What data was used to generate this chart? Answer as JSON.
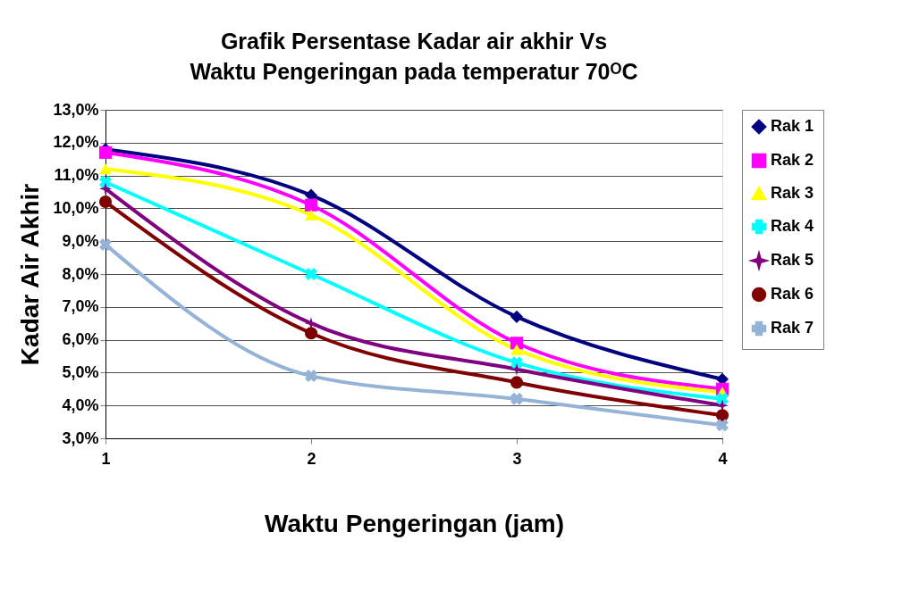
{
  "chart_data": {
    "type": "line",
    "title": "Grafik Persentase Kadar air akhir Vs\nWaktu Pengeringan pada temperatur 70ᴼC",
    "xlabel": "Waktu Pengeringan (jam)",
    "ylabel": "Kadar Air Akhir",
    "x": [
      1,
      2,
      3,
      4
    ],
    "series": [
      {
        "name": "Rak 1",
        "color": "#000080",
        "marker": "diamond",
        "values": [
          11.8,
          10.4,
          6.7,
          4.8
        ]
      },
      {
        "name": "Rak 2",
        "color": "#ff00ff",
        "marker": "square",
        "values": [
          11.7,
          10.1,
          5.9,
          4.5
        ]
      },
      {
        "name": "Rak 3",
        "color": "#ffff00",
        "marker": "triangle",
        "values": [
          11.2,
          9.8,
          5.7,
          4.4
        ]
      },
      {
        "name": "Rak 4",
        "color": "#00ffff",
        "marker": "cross",
        "values": [
          10.8,
          8.0,
          5.3,
          4.2
        ]
      },
      {
        "name": "Rak 5",
        "color": "#800080",
        "marker": "star",
        "values": [
          10.6,
          6.5,
          5.1,
          4.0
        ]
      },
      {
        "name": "Rak 6",
        "color": "#800000",
        "marker": "circle",
        "values": [
          10.2,
          6.2,
          4.7,
          3.7
        ]
      },
      {
        "name": "Rak 7",
        "color": "#95b3d7",
        "marker": "cross",
        "values": [
          8.9,
          4.9,
          4.2,
          3.4
        ]
      }
    ],
    "xlim": [
      1,
      4
    ],
    "xticks": [
      1,
      2,
      3,
      4
    ],
    "ylim": [
      3,
      13
    ],
    "yticks": [
      {
        "value": 3,
        "label": "3,0%"
      },
      {
        "value": 4,
        "label": "4,0%"
      },
      {
        "value": 5,
        "label": "5,0%"
      },
      {
        "value": 6,
        "label": "6,0%"
      },
      {
        "value": 7,
        "label": "7,0%"
      },
      {
        "value": 8,
        "label": "8,0%"
      },
      {
        "value": 9,
        "label": "9,0%"
      },
      {
        "value": 10,
        "label": "10,0%"
      },
      {
        "value": 11,
        "label": "11,0%"
      },
      {
        "value": 12,
        "label": "12,0%"
      },
      {
        "value": 13,
        "label": "13,0%"
      }
    ],
    "grid": "y",
    "legend": "right",
    "line_style": "solid"
  }
}
